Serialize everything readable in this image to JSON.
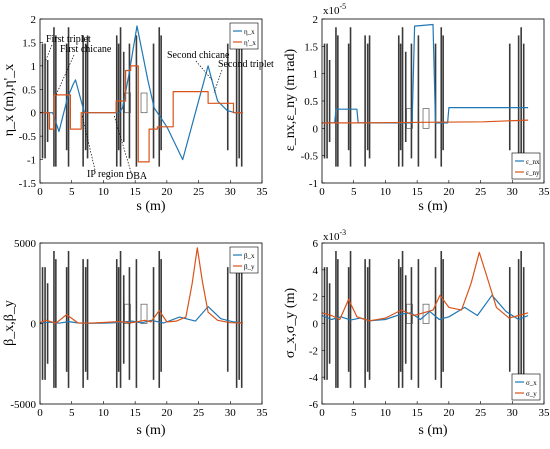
{
  "colors": {
    "blue": "#1f77b4",
    "orange": "#d95319",
    "element": "#3a3a3a",
    "grid": "#9a9a9a"
  },
  "chart_data": [
    {
      "type": "line",
      "panel": "top-left",
      "xlabel": "s (m)",
      "ylabel": "η_x (m),η'_x",
      "xlim": [
        0,
        35
      ],
      "ylim": [
        -1.5,
        2
      ],
      "xticks": [
        0,
        5,
        10,
        15,
        20,
        25,
        30,
        35
      ],
      "yticks": [
        -1.5,
        -1,
        -0.5,
        0,
        0.5,
        1,
        1.5,
        2
      ],
      "legend": "top-right",
      "grid": false,
      "annotations": [
        "First triplet",
        "First chicane",
        "IP region",
        "DBA",
        "Second chicane",
        "Second triplet"
      ],
      "series": [
        {
          "name": "η_x",
          "color": "#1f77b4",
          "x": [
            0,
            1.5,
            2.0,
            3.0,
            4.3,
            5.2,
            5.6,
            6.2,
            7.0,
            11.8,
            12.5,
            13.0,
            14.0,
            15.3,
            17.0,
            18.0,
            20.0,
            22.5,
            24.5,
            26.5,
            27.2,
            28.0,
            29.5,
            30.7,
            32.0
          ],
          "y": [
            0,
            0,
            0,
            -0.4,
            0.3,
            0.6,
            0.7,
            0.4,
            0,
            0,
            0,
            0.1,
            0.8,
            1.85,
            0.7,
            0.1,
            -0.3,
            -1.0,
            0,
            1.0,
            0.65,
            0.25,
            0.05,
            0,
            0
          ]
        },
        {
          "name": "η'_x",
          "color": "#d95319",
          "x": [
            0,
            1.5,
            1.5,
            2.2,
            2.2,
            3.8,
            3.8,
            4.8,
            4.8,
            6.5,
            6.5,
            12.0,
            12.0,
            13.5,
            13.5,
            14.3,
            14.3,
            15.5,
            15.5,
            17.2,
            17.2,
            18.5,
            18.5,
            21.0,
            21.0,
            26.5,
            26.5,
            30.5,
            30.5,
            32.0
          ],
          "y": [
            0,
            0,
            -0.35,
            -0.35,
            0.38,
            0.38,
            0.38,
            0.38,
            -0.35,
            -0.35,
            0,
            0,
            0.25,
            0.25,
            0.9,
            0.9,
            1.0,
            1.0,
            -1.05,
            -1.05,
            -0.35,
            -0.35,
            -0.3,
            -0.3,
            0.45,
            0.45,
            0.2,
            0.2,
            0,
            0
          ]
        }
      ]
    },
    {
      "type": "line",
      "panel": "top-right",
      "xlabel": "s (m)",
      "ylabel": "ε_nx,ε_ny (m rad)",
      "xlim": [
        0,
        35
      ],
      "ylim": [
        -1,
        2
      ],
      "yscale_note": "x10^-5",
      "xticks": [
        0,
        5,
        10,
        15,
        20,
        25,
        30,
        35
      ],
      "yticks": [
        -1,
        -0.5,
        0,
        0.5,
        1,
        1.5,
        2
      ],
      "legend": "bottom-right",
      "grid": false,
      "series": [
        {
          "name": "ε_nx",
          "color": "#1f77b4",
          "x": [
            0,
            2.0,
            2.2,
            5.5,
            5.7,
            14.2,
            14.6,
            17.5,
            17.9,
            19.8,
            20.0,
            32.5
          ],
          "y": [
            0.1,
            0.1,
            0.35,
            0.35,
            0.1,
            0.1,
            1.87,
            1.9,
            0.1,
            0.1,
            0.38,
            0.38
          ]
        },
        {
          "name": "ε_ny",
          "color": "#d95319",
          "x": [
            0,
            5.5,
            25.5,
            32.5
          ],
          "y": [
            0.1,
            0.1,
            0.12,
            0.15
          ]
        }
      ]
    },
    {
      "type": "line",
      "panel": "bottom-left",
      "xlabel": "s (m)",
      "ylabel": "β_x,β_y",
      "xlim": [
        0,
        35
      ],
      "ylim": [
        -5000,
        5000
      ],
      "xticks": [
        0,
        5,
        10,
        15,
        20,
        25,
        30,
        35
      ],
      "yticks": [
        -5000,
        0,
        5000
      ],
      "legend": "top-right",
      "grid": false,
      "series": [
        {
          "name": "β_x",
          "color": "#1f77b4",
          "x": [
            0,
            1.5,
            3.0,
            4.5,
            6.0,
            7.5,
            10.0,
            12.5,
            14.5,
            16.0,
            17.5,
            19.5,
            22.0,
            24.5,
            26.5,
            28.5,
            30.5,
            32.0
          ],
          "y": [
            30,
            80,
            20,
            120,
            40,
            10,
            20,
            60,
            150,
            40,
            200,
            30,
            400,
            150,
            1050,
            300,
            100,
            30
          ]
        },
        {
          "name": "β_y",
          "color": "#d95319",
          "x": [
            0,
            1.0,
            2.5,
            4.2,
            6.0,
            7.5,
            10.0,
            12.5,
            14.5,
            16.5,
            17.5,
            18.8,
            20.0,
            21.5,
            23.0,
            24.0,
            24.8,
            25.6,
            26.5,
            28.0,
            30.0,
            32.0
          ],
          "y": [
            50,
            200,
            20,
            550,
            30,
            20,
            60,
            120,
            50,
            200,
            100,
            800,
            100,
            150,
            400,
            2500,
            4700,
            2600,
            700,
            200,
            50,
            30
          ]
        }
      ]
    },
    {
      "type": "line",
      "panel": "bottom-right",
      "xlabel": "s (m)",
      "ylabel": "σ_x,σ_y (m)",
      "xlim": [
        0,
        35
      ],
      "ylim": [
        -6,
        6
      ],
      "yscale_note": "x10^-3",
      "xticks": [
        0,
        5,
        10,
        15,
        20,
        25,
        30,
        35
      ],
      "yticks": [
        -6,
        -4,
        -2,
        0,
        2,
        4,
        6
      ],
      "legend": "bottom-right",
      "grid": false,
      "series": [
        {
          "name": "σ_x",
          "color": "#1f77b4",
          "x": [
            0,
            1.5,
            3.0,
            4.5,
            6.0,
            7.5,
            10.0,
            12.5,
            14.0,
            15.5,
            17.0,
            18.5,
            20.0,
            22.5,
            24.5,
            26.8,
            29.0,
            31.0,
            32.5
          ],
          "y": [
            0.6,
            0.3,
            0.5,
            0.25,
            0.4,
            0.2,
            0.3,
            0.7,
            0.8,
            0.3,
            0.9,
            0.3,
            0.5,
            1.2,
            0.6,
            2.1,
            0.9,
            0.3,
            0.6
          ]
        },
        {
          "name": "σ_y",
          "color": "#d95319",
          "x": [
            0,
            1.5,
            2.8,
            4.2,
            5.5,
            7.5,
            10.0,
            12.5,
            14.5,
            16.0,
            17.5,
            18.6,
            20.0,
            22.0,
            23.5,
            24.8,
            26.0,
            27.5,
            29.5,
            31.0,
            32.5
          ],
          "y": [
            0.8,
            0.6,
            0.3,
            1.8,
            0.5,
            0.2,
            0.4,
            1.0,
            0.6,
            0.8,
            1.0,
            2.1,
            1.2,
            1.0,
            3.0,
            5.3,
            3.5,
            1.2,
            0.4,
            0.6,
            0.8
          ]
        }
      ]
    }
  ],
  "lattice": {
    "positions": [
      0.4,
      0.8,
      1.2,
      2.2,
      2.5,
      4.2,
      4.5,
      6.8,
      7.2,
      7.5,
      12.1,
      12.4,
      12.7,
      13.2,
      14.1,
      15.2,
      17.9,
      18.8,
      19.1,
      29.6,
      31.0,
      31.4,
      31.8
    ],
    "boxes": [
      13.8,
      16.4
    ]
  }
}
